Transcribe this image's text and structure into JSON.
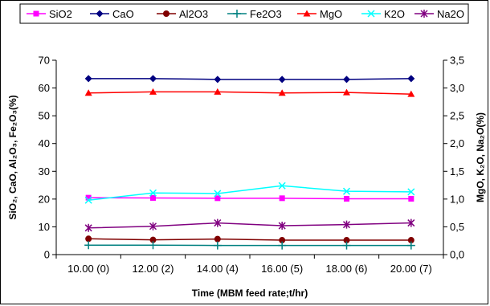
{
  "chart_data": {
    "type": "line",
    "title": "",
    "xlabel": "Time (MBM feed rate;t/hr)",
    "ylabel_left": "SiO₂, CaO, Al₂O₃, Fe₂O₃(%)",
    "ylabel_right": "MgO, K₂O, Na₂O(%)",
    "categories": [
      "10.00 (0)",
      "12.00 (2)",
      "14.00 (4)",
      "16.00 (5)",
      "18.00 (6)",
      "20.00 (7)"
    ],
    "left_ylim": [
      0,
      70
    ],
    "left_yticks": [
      "0",
      "10",
      "20",
      "30",
      "40",
      "50",
      "60",
      "70"
    ],
    "right_ylim": [
      0,
      3.5
    ],
    "right_yticks": [
      "0,0",
      "0,5",
      "1,0",
      "1,5",
      "2,0",
      "2,5",
      "3,0",
      "3,5"
    ],
    "grid": false,
    "legend_position": "top",
    "series": [
      {
        "name": "SiO2",
        "axis": "left",
        "color": "#ff00ff",
        "marker": "square",
        "values": [
          20.5,
          20.4,
          20.3,
          20.3,
          20.1,
          20.1
        ]
      },
      {
        "name": "CaO",
        "axis": "left",
        "color": "#000080",
        "marker": "diamond",
        "values": [
          63.4,
          63.4,
          63.1,
          63.1,
          63.1,
          63.4
        ]
      },
      {
        "name": "Al2O3",
        "axis": "left",
        "color": "#800000",
        "marker": "circle",
        "values": [
          5.7,
          5.3,
          5.6,
          5.2,
          5.2,
          5.2
        ]
      },
      {
        "name": "Fe2O3",
        "axis": "left",
        "color": "#008080",
        "marker": "plus",
        "values": [
          3.4,
          3.4,
          3.3,
          3.3,
          3.3,
          3.3
        ]
      },
      {
        "name": "MgO",
        "axis": "right",
        "color": "#ff0000",
        "marker": "triangle",
        "values": [
          2.91,
          2.93,
          2.93,
          2.91,
          2.92,
          2.89
        ]
      },
      {
        "name": "K2O",
        "axis": "right",
        "color": "#00ffff",
        "marker": "x",
        "values": [
          0.98,
          1.11,
          1.1,
          1.24,
          1.14,
          1.13
        ]
      },
      {
        "name": "Na2O",
        "axis": "right",
        "color": "#800080",
        "marker": "star",
        "values": [
          0.48,
          0.51,
          0.57,
          0.52,
          0.54,
          0.57
        ]
      }
    ]
  }
}
